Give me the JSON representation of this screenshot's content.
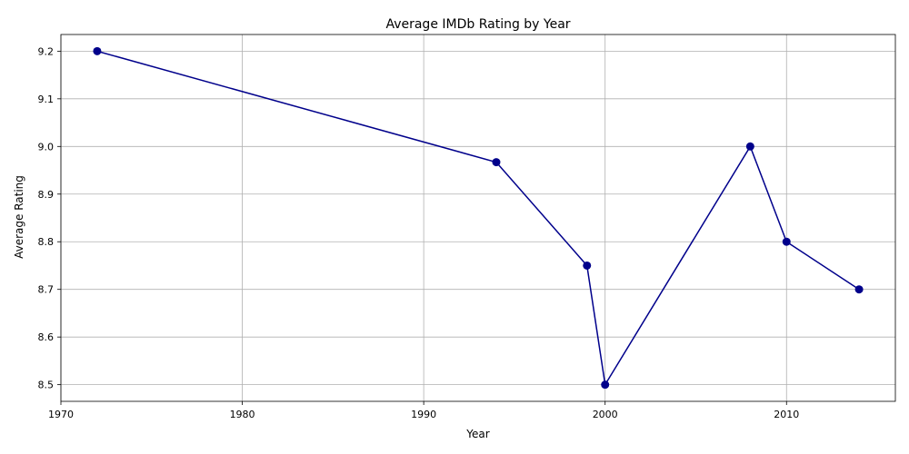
{
  "chart_data": {
    "type": "line",
    "title": "Average IMDb Rating by Year",
    "xlabel": "Year",
    "ylabel": "Average Rating",
    "xlim": [
      1970,
      2016
    ],
    "ylim": [
      8.465,
      9.235
    ],
    "xticks": [
      1970,
      1980,
      1990,
      2000,
      2010
    ],
    "yticks": [
      8.5,
      8.6,
      8.7,
      8.8,
      8.9,
      9.0,
      9.1,
      9.2
    ],
    "ytick_labels": [
      "8.5",
      "8.6",
      "8.7",
      "8.8",
      "8.9",
      "9.0",
      "9.1",
      "9.2"
    ],
    "grid": true,
    "series": [
      {
        "color": "#00008b",
        "marker": "circle",
        "x": [
          1972,
          1994,
          1999,
          2000,
          2008,
          2010,
          2014
        ],
        "y": [
          9.2,
          8.967,
          8.75,
          8.5,
          9.0,
          8.8,
          8.7
        ]
      }
    ]
  }
}
